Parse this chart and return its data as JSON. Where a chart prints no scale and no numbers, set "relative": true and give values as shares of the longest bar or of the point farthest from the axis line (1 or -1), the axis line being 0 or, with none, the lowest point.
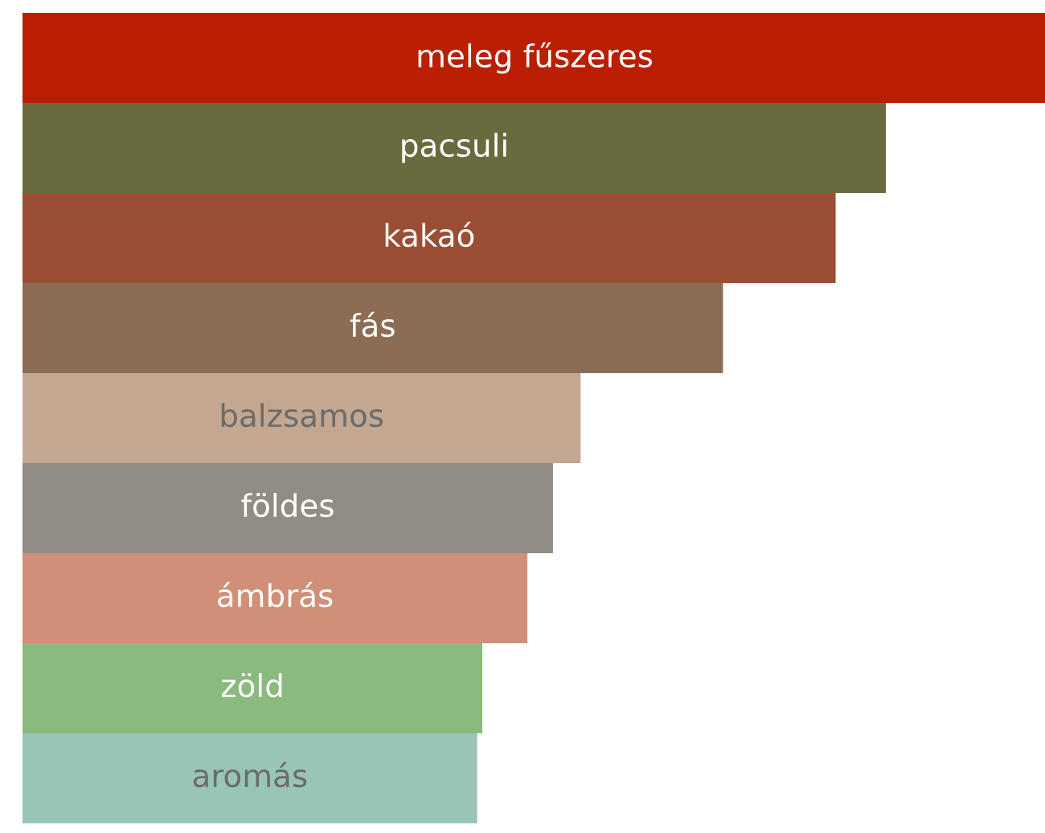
{
  "chart_data": {
    "type": "bar",
    "orientation": "horizontal",
    "relative": true,
    "categories": [
      "meleg fűszeres",
      "pacsuli",
      "kakaó",
      "fás",
      "balzsamos",
      "földes",
      "ámbrás",
      "zöld",
      "aromás"
    ],
    "values": [
      1,
      0.843,
      0.794,
      0.684,
      0.545,
      0.518,
      0.493,
      0.449,
      0.444
    ],
    "colors": [
      "#bb1e02",
      "#6a6a3f",
      "#9a4e33",
      "#8c6c52",
      "#c4a790",
      "#918c84",
      "#d08f76",
      "#8aba7e",
      "#98c5b8"
    ],
    "legend": false
  }
}
